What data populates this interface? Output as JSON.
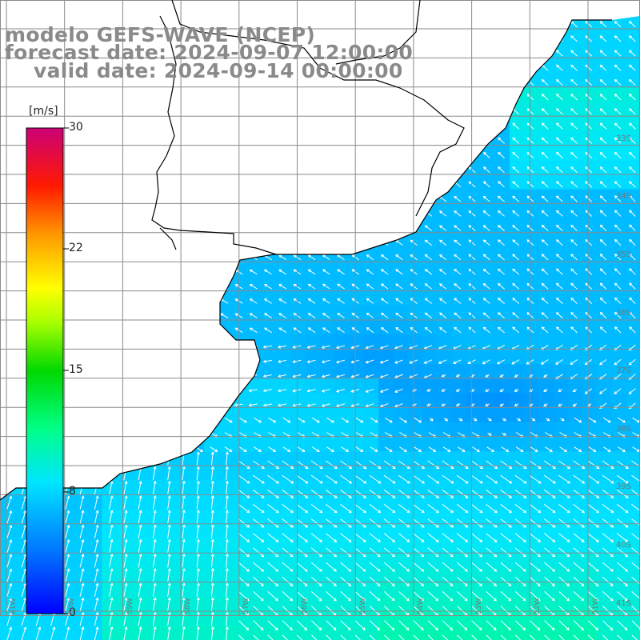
{
  "titles": {
    "line1": "modelo GEFS-WAVE (NCEP)",
    "line2": "forecast date: 2024-09-07 12:00:00",
    "line3": "valid date: 2024-09-14 00:00:00"
  },
  "colorbar": {
    "unit": "[m/s]",
    "ticks": [
      "30",
      "22",
      "15",
      "8",
      "0"
    ],
    "tick_values": [
      30,
      22,
      15,
      8,
      0
    ],
    "range": [
      0,
      30
    ],
    "colors": [
      "#0000ff",
      "#0099ff",
      "#00e5ff",
      "#00ff66",
      "#00cc00",
      "#ffff00",
      "#ff9900",
      "#ff0000",
      "#cc0066"
    ]
  },
  "latitude_labels": [
    "33S",
    "34S",
    "35S",
    "36S",
    "37S",
    "38S",
    "39S",
    "40S",
    "41S"
  ],
  "longitude_labels": [
    "61W",
    "60W",
    "59W",
    "58W",
    "57W",
    "56W",
    "55W",
    "54W",
    "53W",
    "52W",
    "51W"
  ],
  "map": {
    "variable": "wind speed and direction",
    "land_color": "#ffffff",
    "coast_color": "#000000",
    "grid_color": "#888888",
    "arrow_color": "#ffffff"
  }
}
